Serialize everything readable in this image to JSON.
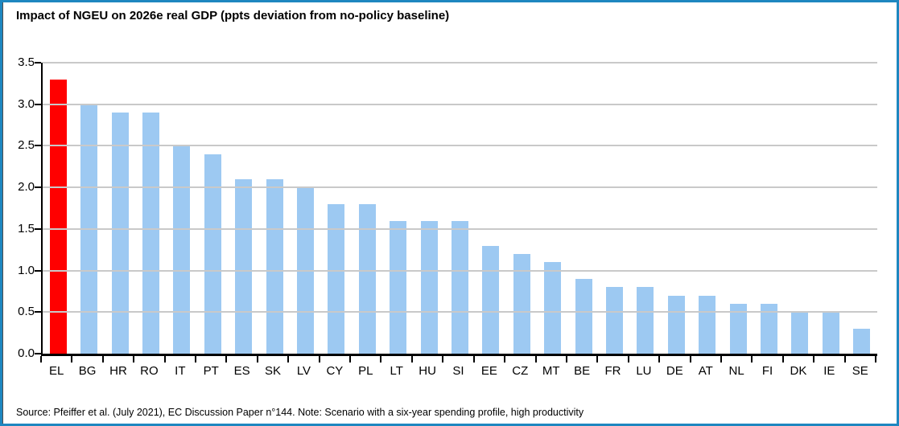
{
  "title": "Impact of NGEU on 2026e real GDP (ppts deviation from no-policy baseline)",
  "source_note": "Source: Pfeiffer et al. (July 2021), EC Discussion Paper n°144. Note: Scenario with a six-year spending profile, high productivity",
  "colors": {
    "frame_border": "#1e87c0",
    "bar": "#9dc9f2",
    "highlight_bar": "#ff0000",
    "gridline": "#c9c9c9",
    "axis": "#000000",
    "background": "#ffffff"
  },
  "chart_data": {
    "type": "bar",
    "title": "Impact of NGEU on 2026e real GDP (ppts deviation from no-policy baseline)",
    "categories": [
      "EL",
      "BG",
      "HR",
      "RO",
      "IT",
      "PT",
      "ES",
      "SK",
      "LV",
      "CY",
      "PL",
      "LT",
      "HU",
      "SI",
      "EE",
      "CZ",
      "MT",
      "BE",
      "FR",
      "LU",
      "DE",
      "AT",
      "NL",
      "FI",
      "DK",
      "IE",
      "SE"
    ],
    "values": [
      3.3,
      3.0,
      2.9,
      2.9,
      2.5,
      2.4,
      2.1,
      2.1,
      2.0,
      1.8,
      1.8,
      1.6,
      1.6,
      1.6,
      1.3,
      1.2,
      1.1,
      0.9,
      0.8,
      0.8,
      0.7,
      0.7,
      0.6,
      0.6,
      0.5,
      0.5,
      0.3
    ],
    "highlight_index": 0,
    "highlight_category": "EL",
    "xlabel": "",
    "ylabel": "",
    "ylim": [
      0,
      3.5
    ],
    "ytick_step": 0.5,
    "ytick_labels": [
      "0.0",
      "0.5",
      "1.0",
      "1.5",
      "2.0",
      "2.5",
      "3.0",
      "3.5"
    ],
    "grid": "horizontal",
    "legend_position": "none"
  }
}
